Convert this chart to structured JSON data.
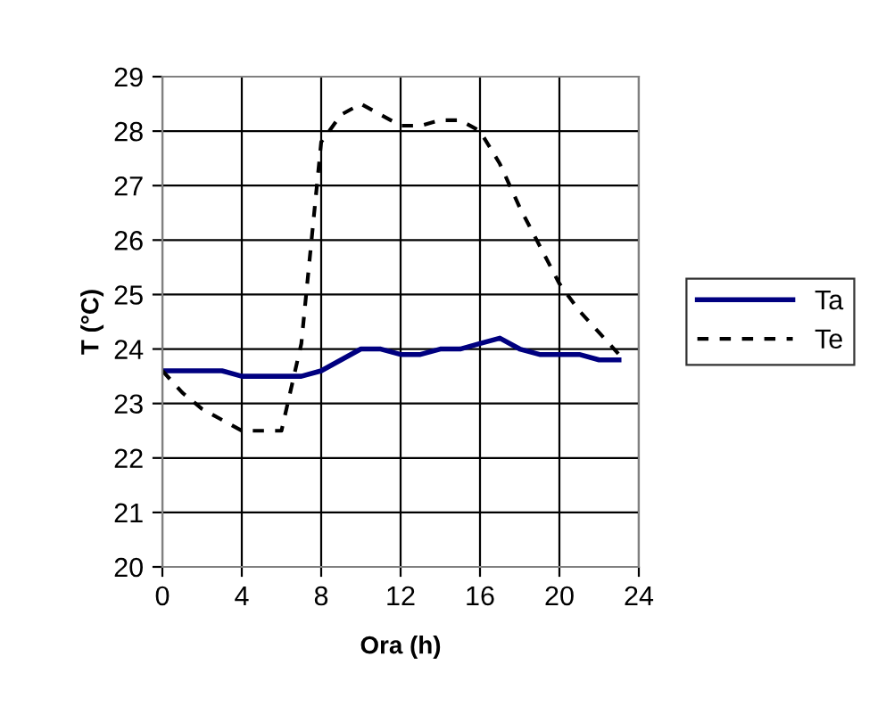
{
  "chart_data": {
    "type": "line",
    "xlabel": "Ora (h)",
    "ylabel": "T (°C)",
    "x": [
      0,
      1,
      2,
      3,
      4,
      5,
      6,
      7,
      8,
      9,
      10,
      11,
      12,
      13,
      14,
      15,
      16,
      17,
      18,
      19,
      20,
      21,
      22,
      23
    ],
    "series": [
      {
        "name": "Ta",
        "color": "#000080",
        "line_style": "solid",
        "values": [
          23.6,
          23.6,
          23.6,
          23.6,
          23.5,
          23.5,
          23.5,
          23.5,
          23.6,
          23.8,
          24.0,
          24.0,
          23.9,
          23.9,
          24.0,
          24.0,
          24.1,
          24.2,
          24.0,
          23.9,
          23.9,
          23.9,
          23.8,
          23.8
        ]
      },
      {
        "name": "Te",
        "color": "#000000",
        "line_style": "dashed",
        "values": [
          23.6,
          23.2,
          22.9,
          22.7,
          22.5,
          22.5,
          22.5,
          24.1,
          27.8,
          28.3,
          28.5,
          28.3,
          28.1,
          28.1,
          28.2,
          28.2,
          28.0,
          27.4,
          26.6,
          25.9,
          25.2,
          24.7,
          24.3,
          23.9
        ]
      }
    ],
    "xlim": [
      0,
      24
    ],
    "xticks": [
      0,
      4,
      8,
      12,
      16,
      20,
      24
    ],
    "ylim": [
      20,
      29
    ],
    "yticks": [
      20,
      21,
      22,
      23,
      24,
      25,
      26,
      27,
      28,
      29
    ],
    "grid": true,
    "legend": "right",
    "marker": "none"
  }
}
